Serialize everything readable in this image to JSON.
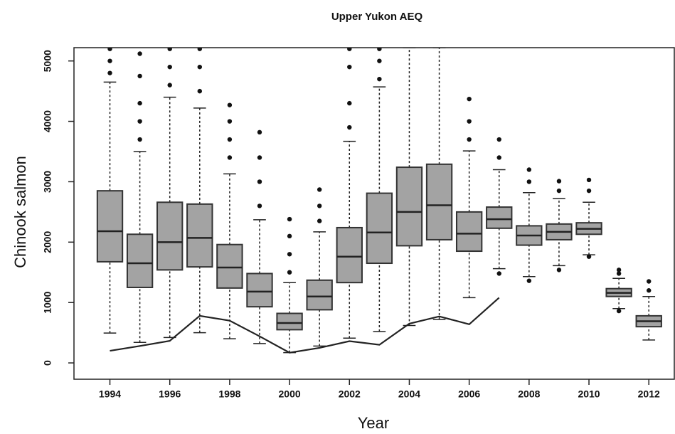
{
  "chart_data": {
    "type": "boxplot",
    "title": "Upper Yukon AEQ",
    "x_label": "Year",
    "y_label": "Chinook salmon",
    "x": [
      1994,
      1995,
      1996,
      1997,
      1998,
      1999,
      2000,
      2001,
      2002,
      2003,
      2004,
      2005,
      2006,
      2007,
      2008,
      2009,
      2010,
      2011,
      2012
    ],
    "xlim": [
      1992.8,
      2012.85
    ],
    "xticks": [
      1994,
      1996,
      1998,
      2000,
      2002,
      2004,
      2006,
      2008,
      2010,
      2012
    ],
    "ylim": [
      -270,
      5220
    ],
    "yticks": [
      0,
      1000,
      2000,
      3000,
      4000,
      5000
    ],
    "box_color": "#a3a3a3",
    "line_color": "#222222",
    "boxes": [
      {
        "low": 495,
        "q1": 1675,
        "median": 2180,
        "q3": 2850,
        "high": 4650,
        "outliers": [
          4800,
          5000,
          5200
        ]
      },
      {
        "low": 340,
        "q1": 1250,
        "median": 1650,
        "q3": 2130,
        "high": 3500,
        "outliers": [
          3700,
          4000,
          4300,
          4750,
          5120
        ]
      },
      {
        "low": 420,
        "q1": 1540,
        "median": 2000,
        "q3": 2660,
        "high": 4400,
        "outliers": [
          4600,
          4900,
          5200
        ]
      },
      {
        "low": 500,
        "q1": 1590,
        "median": 2070,
        "q3": 2630,
        "high": 4220,
        "outliers": [
          4500,
          4900,
          5200
        ]
      },
      {
        "low": 400,
        "q1": 1240,
        "median": 1580,
        "q3": 1960,
        "high": 3130,
        "outliers": [
          3400,
          3700,
          4000,
          4270
        ]
      },
      {
        "low": 320,
        "q1": 930,
        "median": 1180,
        "q3": 1480,
        "high": 2370,
        "outliers": [
          2600,
          3000,
          3400,
          3820
        ]
      },
      {
        "low": 170,
        "q1": 550,
        "median": 660,
        "q3": 820,
        "high": 1330,
        "outliers": [
          1500,
          1800,
          2100,
          2380
        ]
      },
      {
        "low": 280,
        "q1": 880,
        "median": 1100,
        "q3": 1370,
        "high": 2170,
        "outliers": [
          2350,
          2600,
          2870
        ]
      },
      {
        "low": 410,
        "q1": 1330,
        "median": 1760,
        "q3": 2240,
        "high": 3670,
        "outliers": [
          3900,
          4300,
          4900,
          5200
        ]
      },
      {
        "low": 520,
        "q1": 1650,
        "median": 2160,
        "q3": 2810,
        "high": 4570,
        "outliers": [
          4700,
          5000,
          5200
        ]
      },
      {
        "low": 620,
        "q1": 1940,
        "median": 2500,
        "q3": 3240,
        "high": 5220,
        "outliers": []
      },
      {
        "low": 720,
        "q1": 2040,
        "median": 2610,
        "q3": 3290,
        "high": 5220,
        "outliers": []
      },
      {
        "low": 1080,
        "q1": 1850,
        "median": 2140,
        "q3": 2500,
        "high": 3510,
        "outliers": [
          3700,
          4000,
          4370
        ]
      },
      {
        "low": 1560,
        "q1": 2230,
        "median": 2380,
        "q3": 2580,
        "high": 3200,
        "outliers": [
          1480,
          3400,
          3700
        ]
      },
      {
        "low": 1430,
        "q1": 1950,
        "median": 2110,
        "q3": 2270,
        "high": 2820,
        "outliers": [
          1360,
          3000,
          3200
        ]
      },
      {
        "low": 1610,
        "q1": 2040,
        "median": 2170,
        "q3": 2300,
        "high": 2720,
        "outliers": [
          1540,
          2850,
          3010
        ]
      },
      {
        "low": 1790,
        "q1": 2130,
        "median": 2220,
        "q3": 2320,
        "high": 2660,
        "outliers": [
          1760,
          2850,
          3030
        ]
      },
      {
        "low": 900,
        "q1": 1100,
        "median": 1160,
        "q3": 1230,
        "high": 1400,
        "outliers": [
          860,
          1480,
          1540
        ]
      },
      {
        "low": 380,
        "q1": 600,
        "median": 690,
        "q3": 780,
        "high": 1100,
        "outliers": [
          1200,
          1350
        ]
      }
    ],
    "line": [
      200,
      280,
      365,
      780,
      700,
      440,
      170,
      250,
      360,
      300,
      650,
      770,
      640,
      1080,
      null,
      null,
      null,
      null,
      null
    ]
  }
}
